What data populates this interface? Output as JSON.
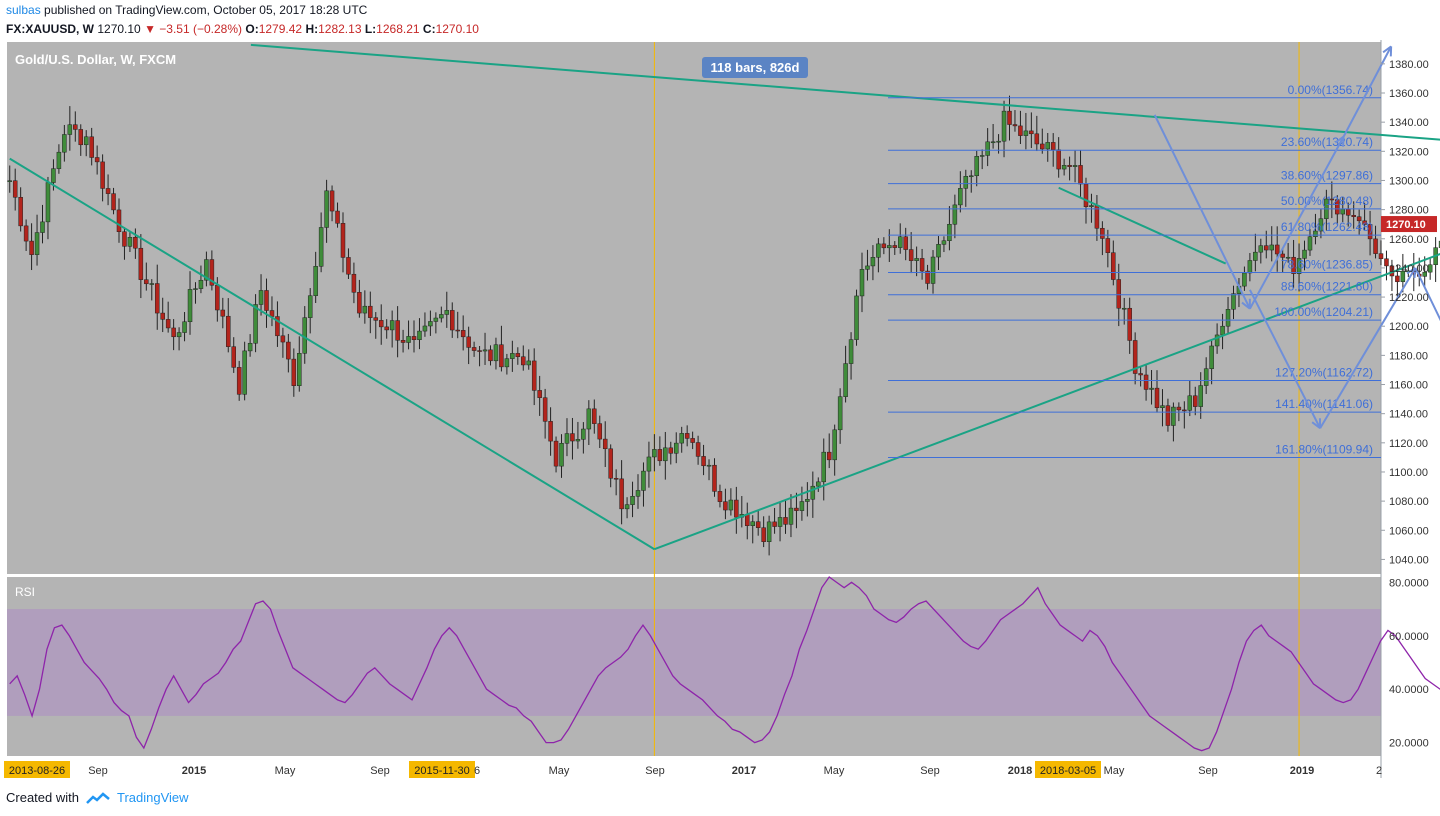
{
  "header": {
    "author": "sulbas",
    "published_text": "published on TradingView.com, October 05, 2017 18:28 UTC",
    "symbol": "FX:XAUUSD, W",
    "last": "1270.10",
    "change": "▼ −3.51 (−0.28%)",
    "open_label": "O:",
    "open": "1279.42",
    "high_label": "H:",
    "high": "1282.13",
    "low_label": "L:",
    "low": "1268.21",
    "close_label": "C:",
    "close": "1270.10"
  },
  "footer": {
    "created_with": "Created with",
    "brand": "TradingView"
  },
  "colors": {
    "up": "#3f8c3a",
    "down": "#b3241c",
    "bg": "#b4b4b4",
    "rsi_band": "#b09ebd",
    "rsi_line": "#8e24aa",
    "trend": "#1aa385",
    "fib": "#3f6fd8",
    "arrow": "#6f8fd9",
    "marker": "#f5b800",
    "price_tag": "#c62828"
  },
  "chart_data": [
    {
      "type": "candlestick",
      "title": "Gold/U.S. Dollar, W, FXCM",
      "ylim": [
        1030,
        1395
      ],
      "y_ticks": [
        1040,
        1060,
        1080,
        1100,
        1120,
        1140,
        1160,
        1180,
        1200,
        1220,
        1240,
        1260,
        1280,
        1300,
        1320,
        1340,
        1360,
        1380
      ],
      "x_labels": [
        "2013-08-26",
        "Sep",
        "2015",
        "May",
        "Sep",
        "2015-11-30",
        "6",
        "May",
        "Sep",
        "2017",
        "May",
        "Sep",
        "2018",
        "2018-03-05",
        "May",
        "Sep",
        "2019",
        "2"
      ],
      "last_price": "1270.10",
      "range_label": "118 bars, 826d",
      "markers": [
        "2015-11-30",
        "2018-03-05"
      ],
      "candle_count": 218,
      "anchors": [
        {
          "i": 0,
          "p": 1300
        },
        {
          "i": 4,
          "p": 1250
        },
        {
          "i": 10,
          "p": 1335
        },
        {
          "i": 14,
          "p": 1330
        },
        {
          "i": 20,
          "p": 1270
        },
        {
          "i": 30,
          "p": 1190
        },
        {
          "i": 36,
          "p": 1245
        },
        {
          "i": 42,
          "p": 1160
        },
        {
          "i": 46,
          "p": 1225
        },
        {
          "i": 52,
          "p": 1165
        },
        {
          "i": 58,
          "p": 1290
        },
        {
          "i": 64,
          "p": 1210
        },
        {
          "i": 70,
          "p": 1200
        },
        {
          "i": 74,
          "p": 1185
        },
        {
          "i": 80,
          "p": 1210
        },
        {
          "i": 86,
          "p": 1180
        },
        {
          "i": 94,
          "p": 1180
        },
        {
          "i": 100,
          "p": 1110
        },
        {
          "i": 106,
          "p": 1140
        },
        {
          "i": 112,
          "p": 1080
        },
        {
          "i": 118,
          "p": 1110
        },
        {
          "i": 124,
          "p": 1130
        },
        {
          "i": 130,
          "p": 1085
        },
        {
          "i": 138,
          "p": 1060
        },
        {
          "i": 144,
          "p": 1070
        },
        {
          "i": 150,
          "p": 1115
        },
        {
          "i": 156,
          "p": 1240
        },
        {
          "i": 162,
          "p": 1260
        },
        {
          "i": 168,
          "p": 1230
        },
        {
          "i": 174,
          "p": 1290
        },
        {
          "i": 182,
          "p": 1340
        },
        {
          "i": 188,
          "p": 1325
        },
        {
          "i": 194,
          "p": 1310
        },
        {
          "i": 200,
          "p": 1265
        },
        {
          "i": 206,
          "p": 1175
        },
        {
          "i": 212,
          "p": 1135
        },
        {
          "i": 217,
          "p": 1150
        }
      ],
      "post_anchors": [
        {
          "w": 0,
          "p": 1150
        },
        {
          "w": 6,
          "p": 1215
        },
        {
          "w": 12,
          "p": 1260
        },
        {
          "w": 18,
          "p": 1240
        },
        {
          "w": 24,
          "p": 1285
        },
        {
          "w": 30,
          "p": 1275
        },
        {
          "w": 36,
          "p": 1230
        },
        {
          "w": 42,
          "p": 1240
        },
        {
          "w": 48,
          "p": 1275
        },
        {
          "w": 54,
          "p": 1300
        },
        {
          "w": 58,
          "p": 1345
        },
        {
          "w": 62,
          "p": 1300
        },
        {
          "w": 67,
          "p": 1272
        }
      ],
      "trendlines": [
        {
          "from": [
            "2013-08-26",
            1315
          ],
          "to": [
            "2015-11-30",
            1047
          ]
        },
        {
          "from": [
            "2015-11-30",
            1047
          ],
          "to": [
            "2019-04",
            1292
          ]
        },
        {
          "from": [
            "2014-07",
            1393
          ],
          "to": [
            "2019-04",
            1319
          ]
        },
        {
          "from": [
            "2017-05",
            1295
          ],
          "to": [
            "2017-12",
            1243
          ]
        }
      ],
      "fib_levels": [
        {
          "label": "0.00%(1356.74)",
          "value": 1356.74
        },
        {
          "label": "23.60%(1320.74)",
          "value": 1320.74
        },
        {
          "label": "38.60%(1297.86)",
          "value": 1297.86
        },
        {
          "label": "50.00%(1280.48)",
          "value": 1280.48
        },
        {
          "label": "61.80%(1262.48)",
          "value": 1262.48
        },
        {
          "label": "78.60%(1236.85)",
          "value": 1236.85
        },
        {
          "label": "88.60%(1221.60)",
          "value": 1221.6
        },
        {
          "label": "100.00%(1204.21)",
          "value": 1204.21
        },
        {
          "label": "127.20%(1162.72)",
          "value": 1162.72
        },
        {
          "label": "141.40%(1141.06)",
          "value": 1141.06
        },
        {
          "label": "161.80%(1109.94)",
          "value": 1109.94
        }
      ],
      "projection_path": [
        {
          "date": "2017-09",
          "p": 1345
        },
        {
          "date": "2018-01",
          "p": 1212
        },
        {
          "date": "2018-05",
          "p": 1330
        },
        {
          "date": "2018-07",
          "p": 1392
        }
      ],
      "projection_path_2": [
        {
          "date": "2018-01",
          "p": 1225
        },
        {
          "date": "2018-04",
          "p": 1130
        },
        {
          "date": "2018-08",
          "p": 1240
        },
        {
          "date": "2018-12",
          "p": 1105
        }
      ]
    },
    {
      "type": "line",
      "title": "RSI",
      "ylim": [
        15,
        82
      ],
      "y_ticks": [
        "20.0000",
        "40.0000",
        "60.0000",
        "80.0000"
      ],
      "band": [
        30,
        70
      ],
      "series": [
        {
          "values": [
            42,
            45,
            38,
            30,
            40,
            55,
            63,
            64,
            60,
            55,
            50,
            47,
            44,
            40,
            35,
            32,
            30,
            22,
            18,
            25,
            33,
            40,
            45,
            40,
            35,
            38,
            42,
            44,
            46,
            50,
            55,
            58,
            65,
            72,
            73,
            70,
            62,
            55,
            48,
            46,
            44,
            42,
            40,
            38,
            36,
            35,
            38,
            42,
            46,
            48,
            45,
            42,
            40,
            38,
            36,
            42,
            48,
            55,
            60,
            63,
            60,
            55,
            50,
            45,
            40,
            38,
            36,
            34,
            33,
            30,
            28,
            24,
            20,
            20,
            21,
            25,
            30,
            35,
            40,
            45,
            48,
            50,
            52,
            55,
            60,
            64,
            60,
            55,
            50,
            45,
            42,
            40,
            38,
            36,
            33,
            30,
            28,
            25,
            24,
            22,
            20,
            21,
            24,
            30,
            38,
            45,
            55,
            62,
            70,
            78,
            82,
            80,
            78,
            80,
            78,
            75,
            70,
            68,
            66,
            65,
            67,
            70,
            72,
            73,
            70,
            67,
            64,
            61,
            58,
            56,
            55,
            58,
            62,
            66,
            68,
            70,
            72,
            75,
            78,
            72,
            68,
            64,
            62,
            60,
            58,
            62,
            60,
            56,
            50,
            46,
            42,
            38,
            34,
            30,
            28,
            26,
            24,
            22,
            20,
            18,
            17,
            18,
            24,
            32,
            40,
            50,
            58,
            62,
            64,
            60,
            58,
            56,
            54,
            50,
            46,
            42,
            40,
            38,
            36,
            35,
            36,
            40,
            46,
            52,
            58,
            62,
            60,
            56,
            52,
            48,
            44,
            42,
            40,
            42,
            46,
            52,
            58,
            63,
            68,
            72,
            75,
            78,
            76,
            70,
            66,
            60,
            55,
            50,
            45,
            42
          ]
        }
      ]
    }
  ]
}
